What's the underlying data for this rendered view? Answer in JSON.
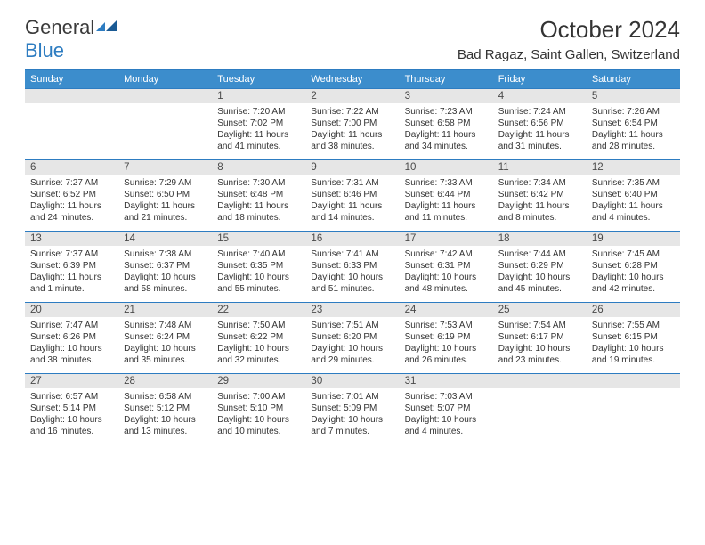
{
  "logo": {
    "text1": "General",
    "text2": "Blue"
  },
  "title": "October 2024",
  "location": "Bad Ragaz, Saint Gallen, Switzerland",
  "colors": {
    "accent": "#2d7cc1",
    "header_bg": "#3c8dcc",
    "daynum_bg": "#e6e6e6",
    "text": "#333333"
  },
  "daysOfWeek": [
    "Sunday",
    "Monday",
    "Tuesday",
    "Wednesday",
    "Thursday",
    "Friday",
    "Saturday"
  ],
  "weeks": [
    [
      null,
      null,
      {
        "n": "1",
        "sr": "7:20 AM",
        "ss": "7:02 PM",
        "dl": "11 hours and 41 minutes."
      },
      {
        "n": "2",
        "sr": "7:22 AM",
        "ss": "7:00 PM",
        "dl": "11 hours and 38 minutes."
      },
      {
        "n": "3",
        "sr": "7:23 AM",
        "ss": "6:58 PM",
        "dl": "11 hours and 34 minutes."
      },
      {
        "n": "4",
        "sr": "7:24 AM",
        "ss": "6:56 PM",
        "dl": "11 hours and 31 minutes."
      },
      {
        "n": "5",
        "sr": "7:26 AM",
        "ss": "6:54 PM",
        "dl": "11 hours and 28 minutes."
      }
    ],
    [
      {
        "n": "6",
        "sr": "7:27 AM",
        "ss": "6:52 PM",
        "dl": "11 hours and 24 minutes."
      },
      {
        "n": "7",
        "sr": "7:29 AM",
        "ss": "6:50 PM",
        "dl": "11 hours and 21 minutes."
      },
      {
        "n": "8",
        "sr": "7:30 AM",
        "ss": "6:48 PM",
        "dl": "11 hours and 18 minutes."
      },
      {
        "n": "9",
        "sr": "7:31 AM",
        "ss": "6:46 PM",
        "dl": "11 hours and 14 minutes."
      },
      {
        "n": "10",
        "sr": "7:33 AM",
        "ss": "6:44 PM",
        "dl": "11 hours and 11 minutes."
      },
      {
        "n": "11",
        "sr": "7:34 AM",
        "ss": "6:42 PM",
        "dl": "11 hours and 8 minutes."
      },
      {
        "n": "12",
        "sr": "7:35 AM",
        "ss": "6:40 PM",
        "dl": "11 hours and 4 minutes."
      }
    ],
    [
      {
        "n": "13",
        "sr": "7:37 AM",
        "ss": "6:39 PM",
        "dl": "11 hours and 1 minute."
      },
      {
        "n": "14",
        "sr": "7:38 AM",
        "ss": "6:37 PM",
        "dl": "10 hours and 58 minutes."
      },
      {
        "n": "15",
        "sr": "7:40 AM",
        "ss": "6:35 PM",
        "dl": "10 hours and 55 minutes."
      },
      {
        "n": "16",
        "sr": "7:41 AM",
        "ss": "6:33 PM",
        "dl": "10 hours and 51 minutes."
      },
      {
        "n": "17",
        "sr": "7:42 AM",
        "ss": "6:31 PM",
        "dl": "10 hours and 48 minutes."
      },
      {
        "n": "18",
        "sr": "7:44 AM",
        "ss": "6:29 PM",
        "dl": "10 hours and 45 minutes."
      },
      {
        "n": "19",
        "sr": "7:45 AM",
        "ss": "6:28 PM",
        "dl": "10 hours and 42 minutes."
      }
    ],
    [
      {
        "n": "20",
        "sr": "7:47 AM",
        "ss": "6:26 PM",
        "dl": "10 hours and 38 minutes."
      },
      {
        "n": "21",
        "sr": "7:48 AM",
        "ss": "6:24 PM",
        "dl": "10 hours and 35 minutes."
      },
      {
        "n": "22",
        "sr": "7:50 AM",
        "ss": "6:22 PM",
        "dl": "10 hours and 32 minutes."
      },
      {
        "n": "23",
        "sr": "7:51 AM",
        "ss": "6:20 PM",
        "dl": "10 hours and 29 minutes."
      },
      {
        "n": "24",
        "sr": "7:53 AM",
        "ss": "6:19 PM",
        "dl": "10 hours and 26 minutes."
      },
      {
        "n": "25",
        "sr": "7:54 AM",
        "ss": "6:17 PM",
        "dl": "10 hours and 23 minutes."
      },
      {
        "n": "26",
        "sr": "7:55 AM",
        "ss": "6:15 PM",
        "dl": "10 hours and 19 minutes."
      }
    ],
    [
      {
        "n": "27",
        "sr": "6:57 AM",
        "ss": "5:14 PM",
        "dl": "10 hours and 16 minutes."
      },
      {
        "n": "28",
        "sr": "6:58 AM",
        "ss": "5:12 PM",
        "dl": "10 hours and 13 minutes."
      },
      {
        "n": "29",
        "sr": "7:00 AM",
        "ss": "5:10 PM",
        "dl": "10 hours and 10 minutes."
      },
      {
        "n": "30",
        "sr": "7:01 AM",
        "ss": "5:09 PM",
        "dl": "10 hours and 7 minutes."
      },
      {
        "n": "31",
        "sr": "7:03 AM",
        "ss": "5:07 PM",
        "dl": "10 hours and 4 minutes."
      },
      null,
      null
    ]
  ],
  "labels": {
    "sunrise": "Sunrise:",
    "sunset": "Sunset:",
    "daylight": "Daylight:"
  }
}
